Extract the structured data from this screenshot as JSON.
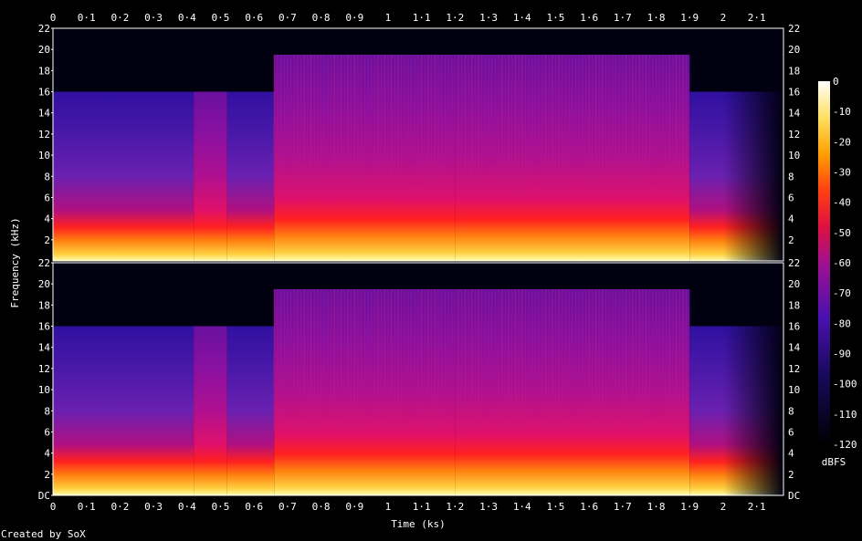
{
  "footer": {
    "created_by": "Created by SoX"
  },
  "chart_data": {
    "type": "heatmap",
    "subtype": "spectrogram",
    "channels": 2,
    "xlabel": "Time (ks)",
    "ylabel": "Frequency (kHz)",
    "xlim": [
      0,
      2.18
    ],
    "ylim_khz": [
      0,
      22
    ],
    "x_tick_labels": [
      "0",
      "0·1",
      "0·2",
      "0·3",
      "0·4",
      "0·5",
      "0·6",
      "0·7",
      "0·8",
      "0·9",
      "1",
      "1·1",
      "1·2",
      "1·3",
      "1·4",
      "1·5",
      "1·6",
      "1·7",
      "1·8",
      "1·9",
      "2",
      "2·1"
    ],
    "y_tick_labels": [
      "DC",
      "2",
      "4",
      "6",
      "8",
      "10",
      "12",
      "14",
      "16",
      "18",
      "20",
      "22"
    ],
    "colorbar": {
      "label": "dBFS",
      "range": [
        -120,
        0
      ],
      "tick_labels": [
        "0",
        "-10",
        "-20",
        "-30",
        "-40",
        "-50",
        "-60",
        "-70",
        "-80",
        "-90",
        "-100",
        "-110",
        "-120"
      ]
    },
    "segments": [
      {
        "start": 0.0,
        "end": 0.42,
        "cutoff_khz": 16,
        "level": 0.48
      },
      {
        "start": 0.42,
        "end": 0.52,
        "cutoff_khz": 16,
        "level": 0.6
      },
      {
        "start": 0.52,
        "end": 0.66,
        "cutoff_khz": 16,
        "level": 0.5
      },
      {
        "start": 0.66,
        "end": 1.2,
        "cutoff_khz": 19.5,
        "level": 0.64
      },
      {
        "start": 1.2,
        "end": 1.9,
        "cutoff_khz": 19.5,
        "level": 0.62
      },
      {
        "start": 1.9,
        "end": 2.18,
        "cutoff_khz": 16,
        "level": 0.35
      }
    ],
    "colors": {
      "low": "#000000",
      "mid_low": "#3a0fa0",
      "mid": "#c01060",
      "mid_high": "#ff5010",
      "high": "#ffffa0",
      "top": "#ffffff"
    }
  }
}
